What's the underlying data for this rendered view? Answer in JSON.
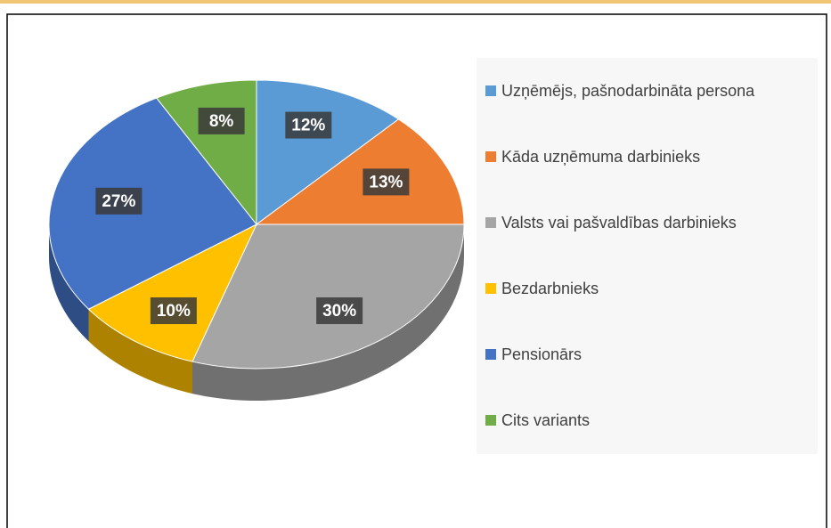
{
  "chart_data": {
    "type": "pie",
    "categories": [
      "Uzņēmējs, pašnodarbināta persona",
      "Kāda uzņēmuma darbinieks",
      "Valsts vai pašvaldības darbinieks",
      "Bezdarbnieks",
      "Pensionārs",
      "Cits variants"
    ],
    "values": [
      12,
      13,
      30,
      10,
      27,
      8
    ],
    "value_labels": [
      "12%",
      "13%",
      "30%",
      "10%",
      "27%",
      "8%"
    ],
    "colors": [
      "#5b9bd5",
      "#ed7d31",
      "#a5a5a5",
      "#ffc000",
      "#4472c4",
      "#70ad47"
    ]
  }
}
